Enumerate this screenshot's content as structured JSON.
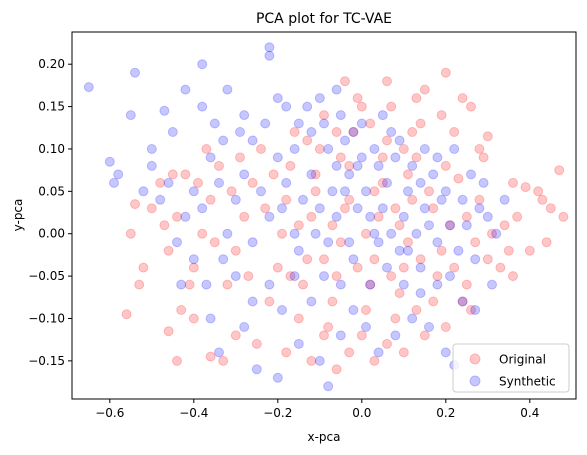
{
  "chart_data": {
    "type": "scatter",
    "title": "PCA plot for TC-VAE",
    "xlabel": "x-pca",
    "ylabel": "y-pca",
    "xlim": [
      -0.69,
      0.51
    ],
    "ylim": [
      -0.195,
      0.238
    ],
    "xticks": [
      -0.6,
      -0.4,
      -0.2,
      0.0,
      0.2,
      0.4
    ],
    "xtick_labels": [
      "−0.6",
      "−0.4",
      "−0.2",
      "0.0",
      "0.2",
      "0.4"
    ],
    "yticks": [
      -0.15,
      -0.1,
      -0.05,
      0.0,
      0.05,
      0.1,
      0.15,
      0.2
    ],
    "ytick_labels": [
      "−0.15",
      "−0.10",
      "−0.05",
      "0.00",
      "0.05",
      "0.10",
      "0.15",
      "0.20"
    ],
    "grid": false,
    "legend_position": "lower-right",
    "series": [
      {
        "name": "Original",
        "color": "#ff0000",
        "alpha": 0.22,
        "points": [
          [
            0.47,
            0.075
          ],
          [
            0.42,
            0.05
          ],
          [
            0.43,
            0.04
          ],
          [
            0.44,
            -0.01
          ],
          [
            0.39,
            0.055
          ],
          [
            0.37,
            0.02
          ],
          [
            0.36,
            0.06
          ],
          [
            0.34,
            0.01
          ],
          [
            0.35,
            -0.02
          ],
          [
            0.3,
            0.115
          ],
          [
            0.29,
            0.09
          ],
          [
            0.28,
            0.04
          ],
          [
            0.27,
            -0.01
          ],
          [
            0.3,
            -0.03
          ],
          [
            0.25,
            -0.06
          ],
          [
            0.26,
            -0.09
          ],
          [
            0.22,
            0.12
          ],
          [
            0.23,
            0.065
          ],
          [
            0.2,
            0.19
          ],
          [
            0.24,
            0.16
          ],
          [
            0.21,
            0.01
          ],
          [
            0.19,
            -0.02
          ],
          [
            0.18,
            -0.05
          ],
          [
            0.17,
            -0.08
          ],
          [
            0.15,
            0.17
          ],
          [
            0.14,
            0.13
          ],
          [
            0.13,
            0.09
          ],
          [
            0.12,
            0.04
          ],
          [
            0.11,
            -0.01
          ],
          [
            0.1,
            -0.04
          ],
          [
            0.09,
            -0.07
          ],
          [
            0.08,
            -0.1
          ],
          [
            0.07,
            0.15
          ],
          [
            0.06,
            0.11
          ],
          [
            0.05,
            0.06
          ],
          [
            0.04,
            0.02
          ],
          [
            0.03,
            -0.03
          ],
          [
            0.02,
            -0.06
          ],
          [
            0.01,
            -0.09
          ],
          [
            0.0,
            -0.12
          ],
          [
            -0.01,
            0.16
          ],
          [
            -0.02,
            0.12
          ],
          [
            -0.03,
            0.08
          ],
          [
            -0.04,
            0.03
          ],
          [
            -0.05,
            -0.01
          ],
          [
            -0.06,
            -0.05
          ],
          [
            -0.07,
            -0.08
          ],
          [
            -0.08,
            -0.11
          ],
          [
            -0.09,
            0.14
          ],
          [
            -0.1,
            0.1
          ],
          [
            -0.11,
            0.07
          ],
          [
            -0.12,
            0.02
          ],
          [
            -0.13,
            -0.03
          ],
          [
            -0.14,
            -0.06
          ],
          [
            -0.15,
            -0.1
          ],
          [
            -0.16,
            0.12
          ],
          [
            -0.17,
            0.08
          ],
          [
            -0.18,
            0.04
          ],
          [
            -0.19,
            0.0
          ],
          [
            -0.2,
            -0.04
          ],
          [
            -0.22,
            -0.08
          ],
          [
            -0.24,
            0.1
          ],
          [
            -0.26,
            0.06
          ],
          [
            -0.28,
            0.02
          ],
          [
            -0.3,
            -0.02
          ],
          [
            -0.32,
            -0.06
          ],
          [
            -0.34,
            0.08
          ],
          [
            -0.36,
            0.04
          ],
          [
            -0.38,
            0.0
          ],
          [
            -0.4,
            -0.04
          ],
          [
            -0.42,
            0.07
          ],
          [
            -0.44,
            0.02
          ],
          [
            -0.46,
            -0.02
          ],
          [
            -0.48,
            0.06
          ],
          [
            -0.5,
            0.03
          ],
          [
            -0.52,
            -0.04
          ],
          [
            -0.54,
            0.035
          ],
          [
            -0.56,
            -0.095
          ],
          [
            -0.53,
            -0.06
          ],
          [
            -0.55,
            0.0
          ],
          [
            -0.44,
            -0.15
          ],
          [
            -0.36,
            -0.145
          ],
          [
            -0.33,
            -0.15
          ],
          [
            -0.46,
            -0.115
          ],
          [
            -0.4,
            -0.1
          ],
          [
            -0.3,
            -0.12
          ],
          [
            -0.25,
            -0.13
          ],
          [
            -0.18,
            -0.14
          ],
          [
            -0.12,
            -0.15
          ],
          [
            -0.06,
            -0.16
          ],
          [
            0.03,
            -0.15
          ],
          [
            0.1,
            -0.14
          ],
          [
            0.15,
            -0.12
          ],
          [
            0.2,
            -0.11
          ],
          [
            0.06,
            -0.13
          ],
          [
            -0.03,
            -0.14
          ],
          [
            -0.09,
            -0.12
          ],
          [
            0.12,
            0.12
          ],
          [
            0.16,
            0.05
          ],
          [
            0.08,
            0.03
          ],
          [
            0.33,
            -0.04
          ],
          [
            0.31,
            0.0
          ],
          [
            0.36,
            -0.05
          ],
          [
            0.4,
            -0.02
          ],
          [
            0.45,
            0.03
          ],
          [
            0.48,
            0.02
          ],
          [
            0.26,
            0.15
          ],
          [
            0.28,
            0.1
          ],
          [
            0.25,
            0.02
          ],
          [
            0.22,
            -0.04
          ],
          [
            0.2,
            0.08
          ],
          [
            0.17,
            0.03
          ],
          [
            0.14,
            -0.03
          ],
          [
            0.11,
            0.07
          ],
          [
            0.09,
            0.01
          ],
          [
            0.07,
            -0.05
          ],
          [
            0.05,
            0.09
          ],
          [
            0.03,
            0.05
          ],
          [
            0.01,
            0.0
          ],
          [
            -0.01,
            -0.04
          ],
          [
            -0.03,
            0.04
          ],
          [
            -0.05,
            0.09
          ],
          [
            -0.07,
            0.01
          ],
          [
            -0.09,
            -0.03
          ],
          [
            -0.11,
            0.05
          ],
          [
            -0.13,
            0.11
          ],
          [
            -0.15,
            0.01
          ],
          [
            -0.17,
            -0.05
          ],
          [
            -0.21,
            0.07
          ],
          [
            -0.23,
            0.03
          ],
          [
            -0.27,
            -0.05
          ],
          [
            -0.29,
            0.09
          ],
          [
            -0.31,
            0.05
          ],
          [
            -0.35,
            -0.01
          ],
          [
            -0.37,
            0.1
          ],
          [
            -0.39,
            0.06
          ],
          [
            -0.41,
            -0.06
          ],
          [
            -0.43,
            -0.09
          ],
          [
            -0.45,
            0.07
          ],
          [
            -0.47,
            0.01
          ],
          [
            0.19,
            0.14
          ],
          [
            0.13,
            0.16
          ],
          [
            0.06,
            0.18
          ],
          [
            0.0,
            0.15
          ],
          [
            -0.04,
            0.18
          ],
          [
            0.1,
            0.1
          ],
          [
            0.02,
            0.13
          ],
          [
            -0.06,
            0.12
          ],
          [
            0.24,
            -0.08
          ],
          [
            0.13,
            -0.09
          ]
        ]
      },
      {
        "name": "Synthetic",
        "color": "#0000ff",
        "alpha": 0.22,
        "points": [
          [
            -0.65,
            0.173
          ],
          [
            -0.59,
            0.06
          ],
          [
            -0.58,
            0.07
          ],
          [
            -0.6,
            0.085
          ],
          [
            -0.55,
            0.14
          ],
          [
            -0.54,
            0.19
          ],
          [
            -0.5,
            0.1
          ],
          [
            -0.47,
            0.145
          ],
          [
            -0.45,
            0.12
          ],
          [
            -0.42,
            0.17
          ],
          [
            -0.38,
            0.2
          ],
          [
            -0.38,
            0.15
          ],
          [
            -0.35,
            0.13
          ],
          [
            -0.32,
            0.17
          ],
          [
            -0.28,
            0.14
          ],
          [
            -0.22,
            0.22
          ],
          [
            -0.22,
            0.21
          ],
          [
            -0.2,
            0.16
          ],
          [
            -0.18,
            0.15
          ],
          [
            -0.15,
            0.13
          ],
          [
            -0.12,
            0.12
          ],
          [
            -0.1,
            0.16
          ],
          [
            -0.08,
            0.1
          ],
          [
            -0.06,
            0.17
          ],
          [
            -0.05,
            0.14
          ],
          [
            -0.03,
            0.07
          ],
          [
            -0.02,
            0.12
          ],
          [
            0.0,
            0.09
          ],
          [
            0.01,
            0.05
          ],
          [
            0.02,
            0.02
          ],
          [
            0.04,
            -0.01
          ],
          [
            0.05,
            0.03
          ],
          [
            0.06,
            0.06
          ],
          [
            0.08,
            0.09
          ],
          [
            0.09,
            -0.02
          ],
          [
            0.1,
            0.02
          ],
          [
            0.11,
            0.05
          ],
          [
            0.13,
            0.0
          ],
          [
            0.14,
            -0.04
          ],
          [
            0.15,
            0.03
          ],
          [
            0.17,
            0.07
          ],
          [
            0.18,
            -0.01
          ],
          [
            0.19,
            0.04
          ],
          [
            0.21,
            0.01
          ],
          [
            0.23,
            -0.02
          ],
          [
            0.25,
            0.01
          ],
          [
            0.27,
            -0.03
          ],
          [
            0.28,
            0.03
          ],
          [
            0.3,
            0.02
          ],
          [
            0.32,
            0.0
          ],
          [
            0.26,
            0.07
          ],
          [
            0.22,
            0.1
          ],
          [
            0.18,
            0.09
          ],
          [
            0.12,
            0.08
          ],
          [
            0.07,
            0.12
          ],
          [
            0.03,
            0.1
          ],
          [
            -0.01,
            0.08
          ],
          [
            -0.04,
            0.05
          ],
          [
            -0.06,
            0.02
          ],
          [
            -0.08,
            -0.01
          ],
          [
            -0.1,
            0.03
          ],
          [
            -0.12,
            0.07
          ],
          [
            -0.14,
            0.04
          ],
          [
            -0.16,
            0.0
          ],
          [
            -0.18,
            0.06
          ],
          [
            -0.2,
            0.09
          ],
          [
            -0.22,
            0.02
          ],
          [
            -0.24,
            0.05
          ],
          [
            -0.26,
            -0.01
          ],
          [
            -0.28,
            0.07
          ],
          [
            -0.3,
            0.04
          ],
          [
            -0.32,
            0.0
          ],
          [
            -0.34,
            0.06
          ],
          [
            -0.36,
            0.09
          ],
          [
            -0.38,
            0.03
          ],
          [
            -0.4,
            0.05
          ],
          [
            -0.42,
            0.02
          ],
          [
            -0.44,
            -0.01
          ],
          [
            -0.46,
            0.06
          ],
          [
            -0.48,
            0.04
          ],
          [
            -0.43,
            -0.06
          ],
          [
            -0.36,
            -0.1
          ],
          [
            -0.34,
            -0.14
          ],
          [
            -0.28,
            -0.11
          ],
          [
            -0.25,
            -0.16
          ],
          [
            -0.2,
            -0.17
          ],
          [
            -0.15,
            -0.13
          ],
          [
            -0.1,
            -0.15
          ],
          [
            -0.08,
            -0.18
          ],
          [
            -0.05,
            -0.12
          ],
          [
            -0.02,
            -0.09
          ],
          [
            0.01,
            -0.11
          ],
          [
            0.04,
            -0.14
          ],
          [
            0.08,
            -0.12
          ],
          [
            0.12,
            -0.1
          ],
          [
            0.16,
            -0.11
          ],
          [
            0.2,
            -0.14
          ],
          [
            0.22,
            -0.155
          ],
          [
            0.24,
            -0.08
          ],
          [
            0.1,
            -0.06
          ],
          [
            0.06,
            -0.04
          ],
          [
            0.02,
            -0.06
          ],
          [
            -0.02,
            -0.03
          ],
          [
            -0.05,
            -0.06
          ],
          [
            -0.09,
            -0.05
          ],
          [
            -0.12,
            -0.08
          ],
          [
            -0.16,
            -0.05
          ],
          [
            -0.19,
            -0.09
          ],
          [
            -0.22,
            -0.06
          ],
          [
            -0.26,
            -0.08
          ],
          [
            -0.3,
            -0.05
          ],
          [
            -0.33,
            -0.03
          ],
          [
            -0.37,
            -0.06
          ],
          [
            -0.4,
            -0.03
          ],
          [
            -0.26,
            0.11
          ],
          [
            -0.23,
            0.13
          ],
          [
            -0.16,
            0.1
          ],
          [
            -0.13,
            0.15
          ],
          [
            -0.09,
            0.13
          ],
          [
            -0.04,
            0.11
          ],
          [
            0.0,
            0.13
          ],
          [
            0.05,
            0.14
          ],
          [
            0.09,
            0.11
          ],
          [
            0.14,
            0.06
          ],
          [
            0.16,
            0.01
          ],
          [
            0.2,
            0.05
          ],
          [
            0.24,
            0.04
          ],
          [
            0.29,
            0.06
          ],
          [
            0.34,
            0.04
          ],
          [
            0.31,
            -0.06
          ],
          [
            0.27,
            -0.09
          ],
          [
            0.18,
            -0.06
          ],
          [
            0.14,
            -0.07
          ],
          [
            0.03,
            0.0
          ],
          [
            -0.01,
            0.03
          ],
          [
            -0.03,
            -0.01
          ],
          [
            -0.07,
            0.05
          ],
          [
            -0.11,
            0.0
          ],
          [
            -0.15,
            -0.02
          ],
          [
            -0.19,
            0.03
          ],
          [
            -0.5,
            0.08
          ],
          [
            -0.52,
            0.05
          ],
          [
            -0.33,
            0.11
          ],
          [
            -0.29,
            0.12
          ],
          [
            0.04,
            0.08
          ],
          [
            0.11,
            -0.02
          ],
          [
            0.07,
            0.0
          ],
          [
            -0.06,
            0.08
          ],
          [
            0.15,
            0.1
          ],
          [
            0.21,
            -0.05
          ]
        ]
      }
    ]
  }
}
